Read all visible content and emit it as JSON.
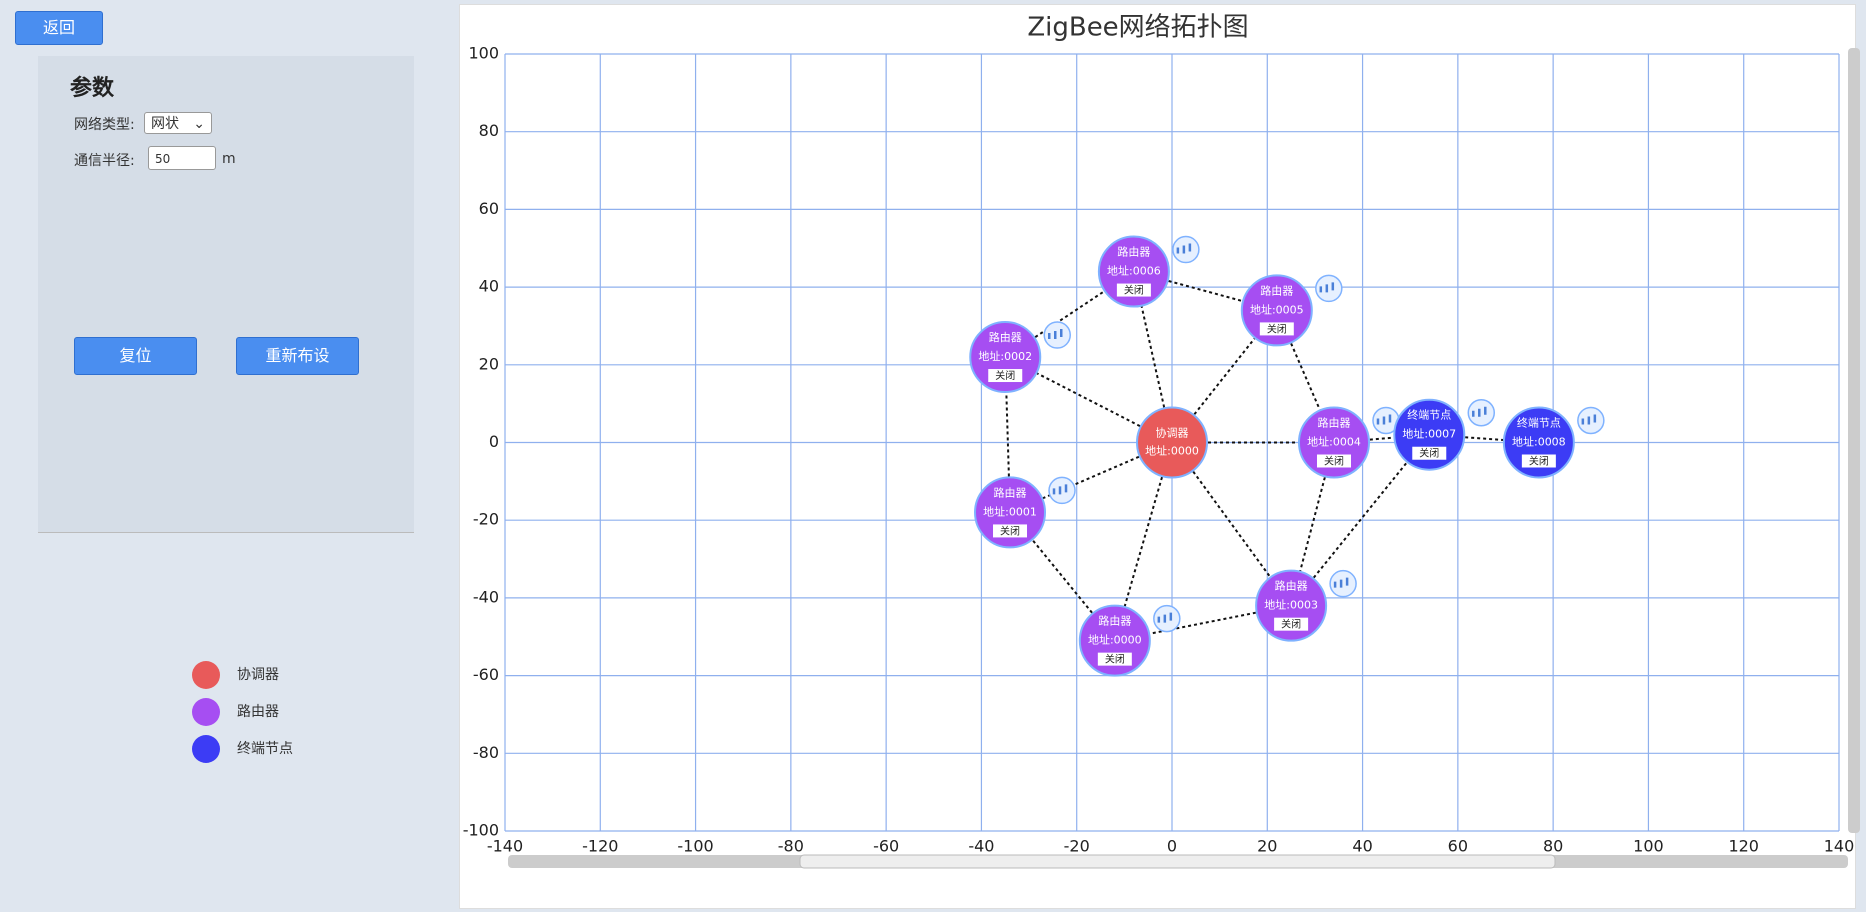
{
  "ui": {
    "back_button": "返回",
    "panel_title": "参数",
    "network_type_label": "网络类型:",
    "network_type_value": "网状",
    "radius_label": "通信半径:",
    "radius_value": "50",
    "radius_unit": "m",
    "reset_button": "复位",
    "relayout_button": "重新布设"
  },
  "chart_data": {
    "type": "network",
    "title": "ZigBee网络拓扑图",
    "xlim": [
      -140,
      140
    ],
    "ylim": [
      -100,
      100
    ],
    "xticks": [
      -140,
      -120,
      -100,
      -80,
      -60,
      -40,
      -20,
      0,
      20,
      40,
      60,
      80,
      100,
      120,
      140
    ],
    "yticks": [
      -100,
      -80,
      -60,
      -40,
      -20,
      0,
      20,
      40,
      60,
      80,
      100
    ],
    "grid": true,
    "button_label": "关闭",
    "series": [
      {
        "name": "协调器",
        "color": "#e85a5a",
        "x": [
          0
        ],
        "y": [
          0
        ],
        "labels": [
          "地址:0000"
        ],
        "has_button": false
      },
      {
        "name": "路由器",
        "color": "#a64ef2",
        "x": [
          -12,
          -34,
          -35,
          25,
          34,
          22,
          -8
        ],
        "y": [
          -51,
          -18,
          22,
          -42,
          0,
          34,
          44
        ],
        "labels": [
          "地址:0000",
          "地址:0001",
          "地址:0002",
          "地址:0003",
          "地址:0004",
          "地址:0005",
          "地址:0006"
        ],
        "has_button": true
      },
      {
        "name": "终端节点",
        "color": "#3c3cf5",
        "x": [
          54,
          77
        ],
        "y": [
          2,
          0
        ],
        "labels": [
          "地址:0007",
          "地址:0008"
        ],
        "has_button": true
      }
    ],
    "links": [
      [
        [
          0,
          0
        ],
        [
          1,
          6
        ]
      ],
      [
        [
          0,
          0
        ],
        [
          1,
          2
        ]
      ],
      [
        [
          0,
          0
        ],
        [
          1,
          1
        ]
      ],
      [
        [
          0,
          0
        ],
        [
          1,
          0
        ]
      ],
      [
        [
          0,
          0
        ],
        [
          1,
          3
        ]
      ],
      [
        [
          0,
          0
        ],
        [
          1,
          4
        ]
      ],
      [
        [
          0,
          0
        ],
        [
          1,
          5
        ]
      ],
      [
        [
          1,
          2
        ],
        [
          1,
          6
        ]
      ],
      [
        [
          1,
          6
        ],
        [
          1,
          5
        ]
      ],
      [
        [
          1,
          5
        ],
        [
          1,
          4
        ]
      ],
      [
        [
          1,
          4
        ],
        [
          1,
          3
        ]
      ],
      [
        [
          1,
          3
        ],
        [
          1,
          0
        ]
      ],
      [
        [
          1,
          0
        ],
        [
          1,
          1
        ]
      ],
      [
        [
          1,
          1
        ],
        [
          1,
          2
        ]
      ],
      [
        [
          1,
          4
        ],
        [
          2,
          0
        ]
      ],
      [
        [
          2,
          0
        ],
        [
          2,
          1
        ]
      ],
      [
        [
          1,
          3
        ],
        [
          2,
          0
        ]
      ]
    ]
  }
}
